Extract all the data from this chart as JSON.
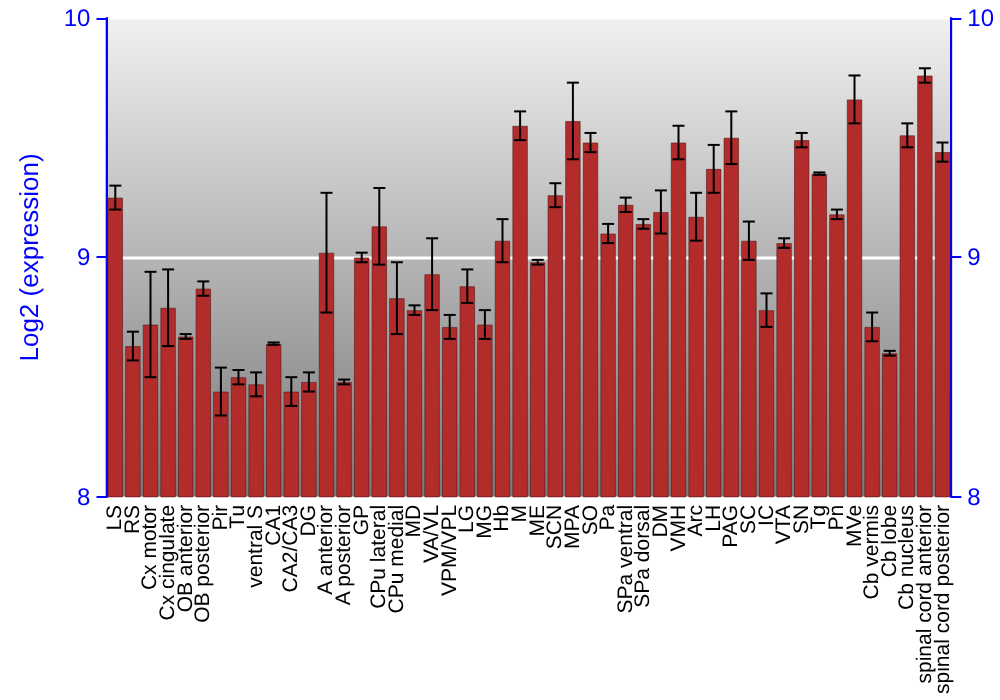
{
  "chart_data": {
    "type": "bar",
    "ylabel": "Log2 (expression)",
    "categories": [
      "LS",
      "RS",
      "Cx motor",
      "Cx cingulate",
      "OB anterior",
      "OB posterior",
      "Pir",
      "Tu",
      "ventral S",
      "CA1",
      "CA2/CA3",
      "DG",
      "A anterior",
      "A posterior",
      "GP",
      "CPu lateral",
      "CPu medial",
      "MD",
      "VA/VL",
      "VPM/VPL",
      "LG",
      "MG",
      "Hb",
      "M",
      "ME",
      "SCN",
      "MPA",
      "SO",
      "Pa",
      "SPa ventral",
      "SPa dorsal",
      "DM",
      "VMH",
      "Arc",
      "LH",
      "PAG",
      "SC",
      "IC",
      "VTA",
      "SN",
      "Tg",
      "Pn",
      "MVe",
      "Cb vermis",
      "Cb lobe",
      "Cb nucleus",
      "spinal cord anterior",
      "spinal cord posterior"
    ],
    "values": [
      9.25,
      8.63,
      8.72,
      8.79,
      8.67,
      8.87,
      8.44,
      8.5,
      8.47,
      8.64,
      8.44,
      8.48,
      9.02,
      8.48,
      9.0,
      9.13,
      8.83,
      8.78,
      8.93,
      8.71,
      8.88,
      8.72,
      9.07,
      9.55,
      8.98,
      9.26,
      9.57,
      9.48,
      9.1,
      9.22,
      9.14,
      9.19,
      9.48,
      9.17,
      9.37,
      9.5,
      9.07,
      8.78,
      9.06,
      9.49,
      9.35,
      9.18,
      9.66,
      8.71,
      8.6,
      9.51,
      9.76,
      9.44
    ],
    "errors": [
      0.05,
      0.06,
      0.22,
      0.16,
      0.01,
      0.03,
      0.1,
      0.03,
      0.05,
      0.005,
      0.06,
      0.04,
      0.25,
      0.01,
      0.02,
      0.16,
      0.15,
      0.02,
      0.15,
      0.05,
      0.07,
      0.06,
      0.09,
      0.06,
      0.01,
      0.05,
      0.16,
      0.04,
      0.04,
      0.03,
      0.02,
      0.09,
      0.07,
      0.1,
      0.1,
      0.11,
      0.08,
      0.07,
      0.02,
      0.03,
      0.005,
      0.02,
      0.1,
      0.06,
      0.01,
      0.05,
      0.03,
      0.04
    ],
    "color": "#b22c2c",
    "ylim": [
      8,
      10
    ],
    "yticks": [
      8,
      9,
      10
    ],
    "y2lim": [
      8,
      10
    ],
    "y2ticks": [
      8,
      9,
      10
    ],
    "grid": "y"
  }
}
